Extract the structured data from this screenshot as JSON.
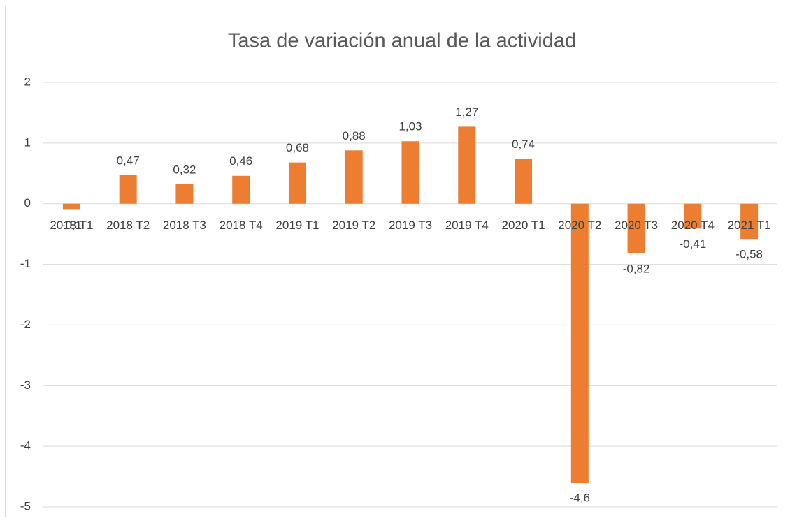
{
  "chart_data": {
    "type": "bar",
    "title": "Tasa de variación anual de la actividad",
    "categories": [
      "2018 T1",
      "2018 T2",
      "2018 T3",
      "2018 T4",
      "2019 T1",
      "2019 T2",
      "2019 T3",
      "2019 T4",
      "2020 T1",
      "2020 T2",
      "2020 T3",
      "2020 T4",
      "2021 T1"
    ],
    "values": [
      -0.1,
      0.47,
      0.32,
      0.46,
      0.68,
      0.88,
      1.03,
      1.27,
      0.74,
      -4.6,
      -0.82,
      -0.41,
      -0.58
    ],
    "value_labels": [
      "-0,1",
      "0,47",
      "0,32",
      "0,46",
      "0,68",
      "0,88",
      "1,03",
      "1,27",
      "0,74",
      "-4,6",
      "-0,82",
      "-0,41",
      "-0,58"
    ],
    "color": "#ed7d31",
    "ylim": [
      -5,
      2
    ],
    "yticks": [
      -5,
      -4,
      -3,
      -2,
      -1,
      0,
      1,
      2
    ],
    "grid": true
  }
}
